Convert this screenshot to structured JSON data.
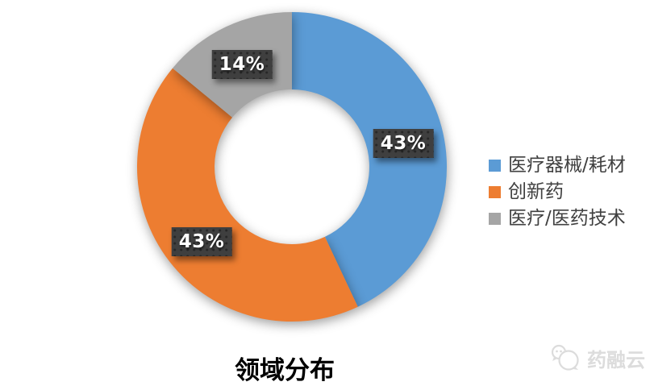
{
  "chart_data": {
    "type": "pie",
    "subtype": "donut",
    "title": "领域分布",
    "categories": [
      "医疗器械/耗材",
      "创新药",
      "医疗/医药技术"
    ],
    "values": [
      43,
      43,
      14
    ],
    "data_labels": [
      "43%",
      "43%",
      "14%"
    ],
    "colors": [
      "#5B9BD5",
      "#ED7D31",
      "#A5A5A5"
    ],
    "total": 100,
    "legend_position": "right",
    "start_angle_deg": 0,
    "clockwise": true,
    "inner_radius_ratio": 0.5
  },
  "styles": {
    "background": "#FFFFFF",
    "data_label_bg": "#3F3F3F",
    "data_label_text": "#FFFFFF",
    "legend_text_color": "#404040",
    "title_color": "#000000",
    "watermark_color": "#DCDCDC"
  },
  "watermark": {
    "text": "药融云",
    "icon": "chat-bubbles-logo"
  }
}
